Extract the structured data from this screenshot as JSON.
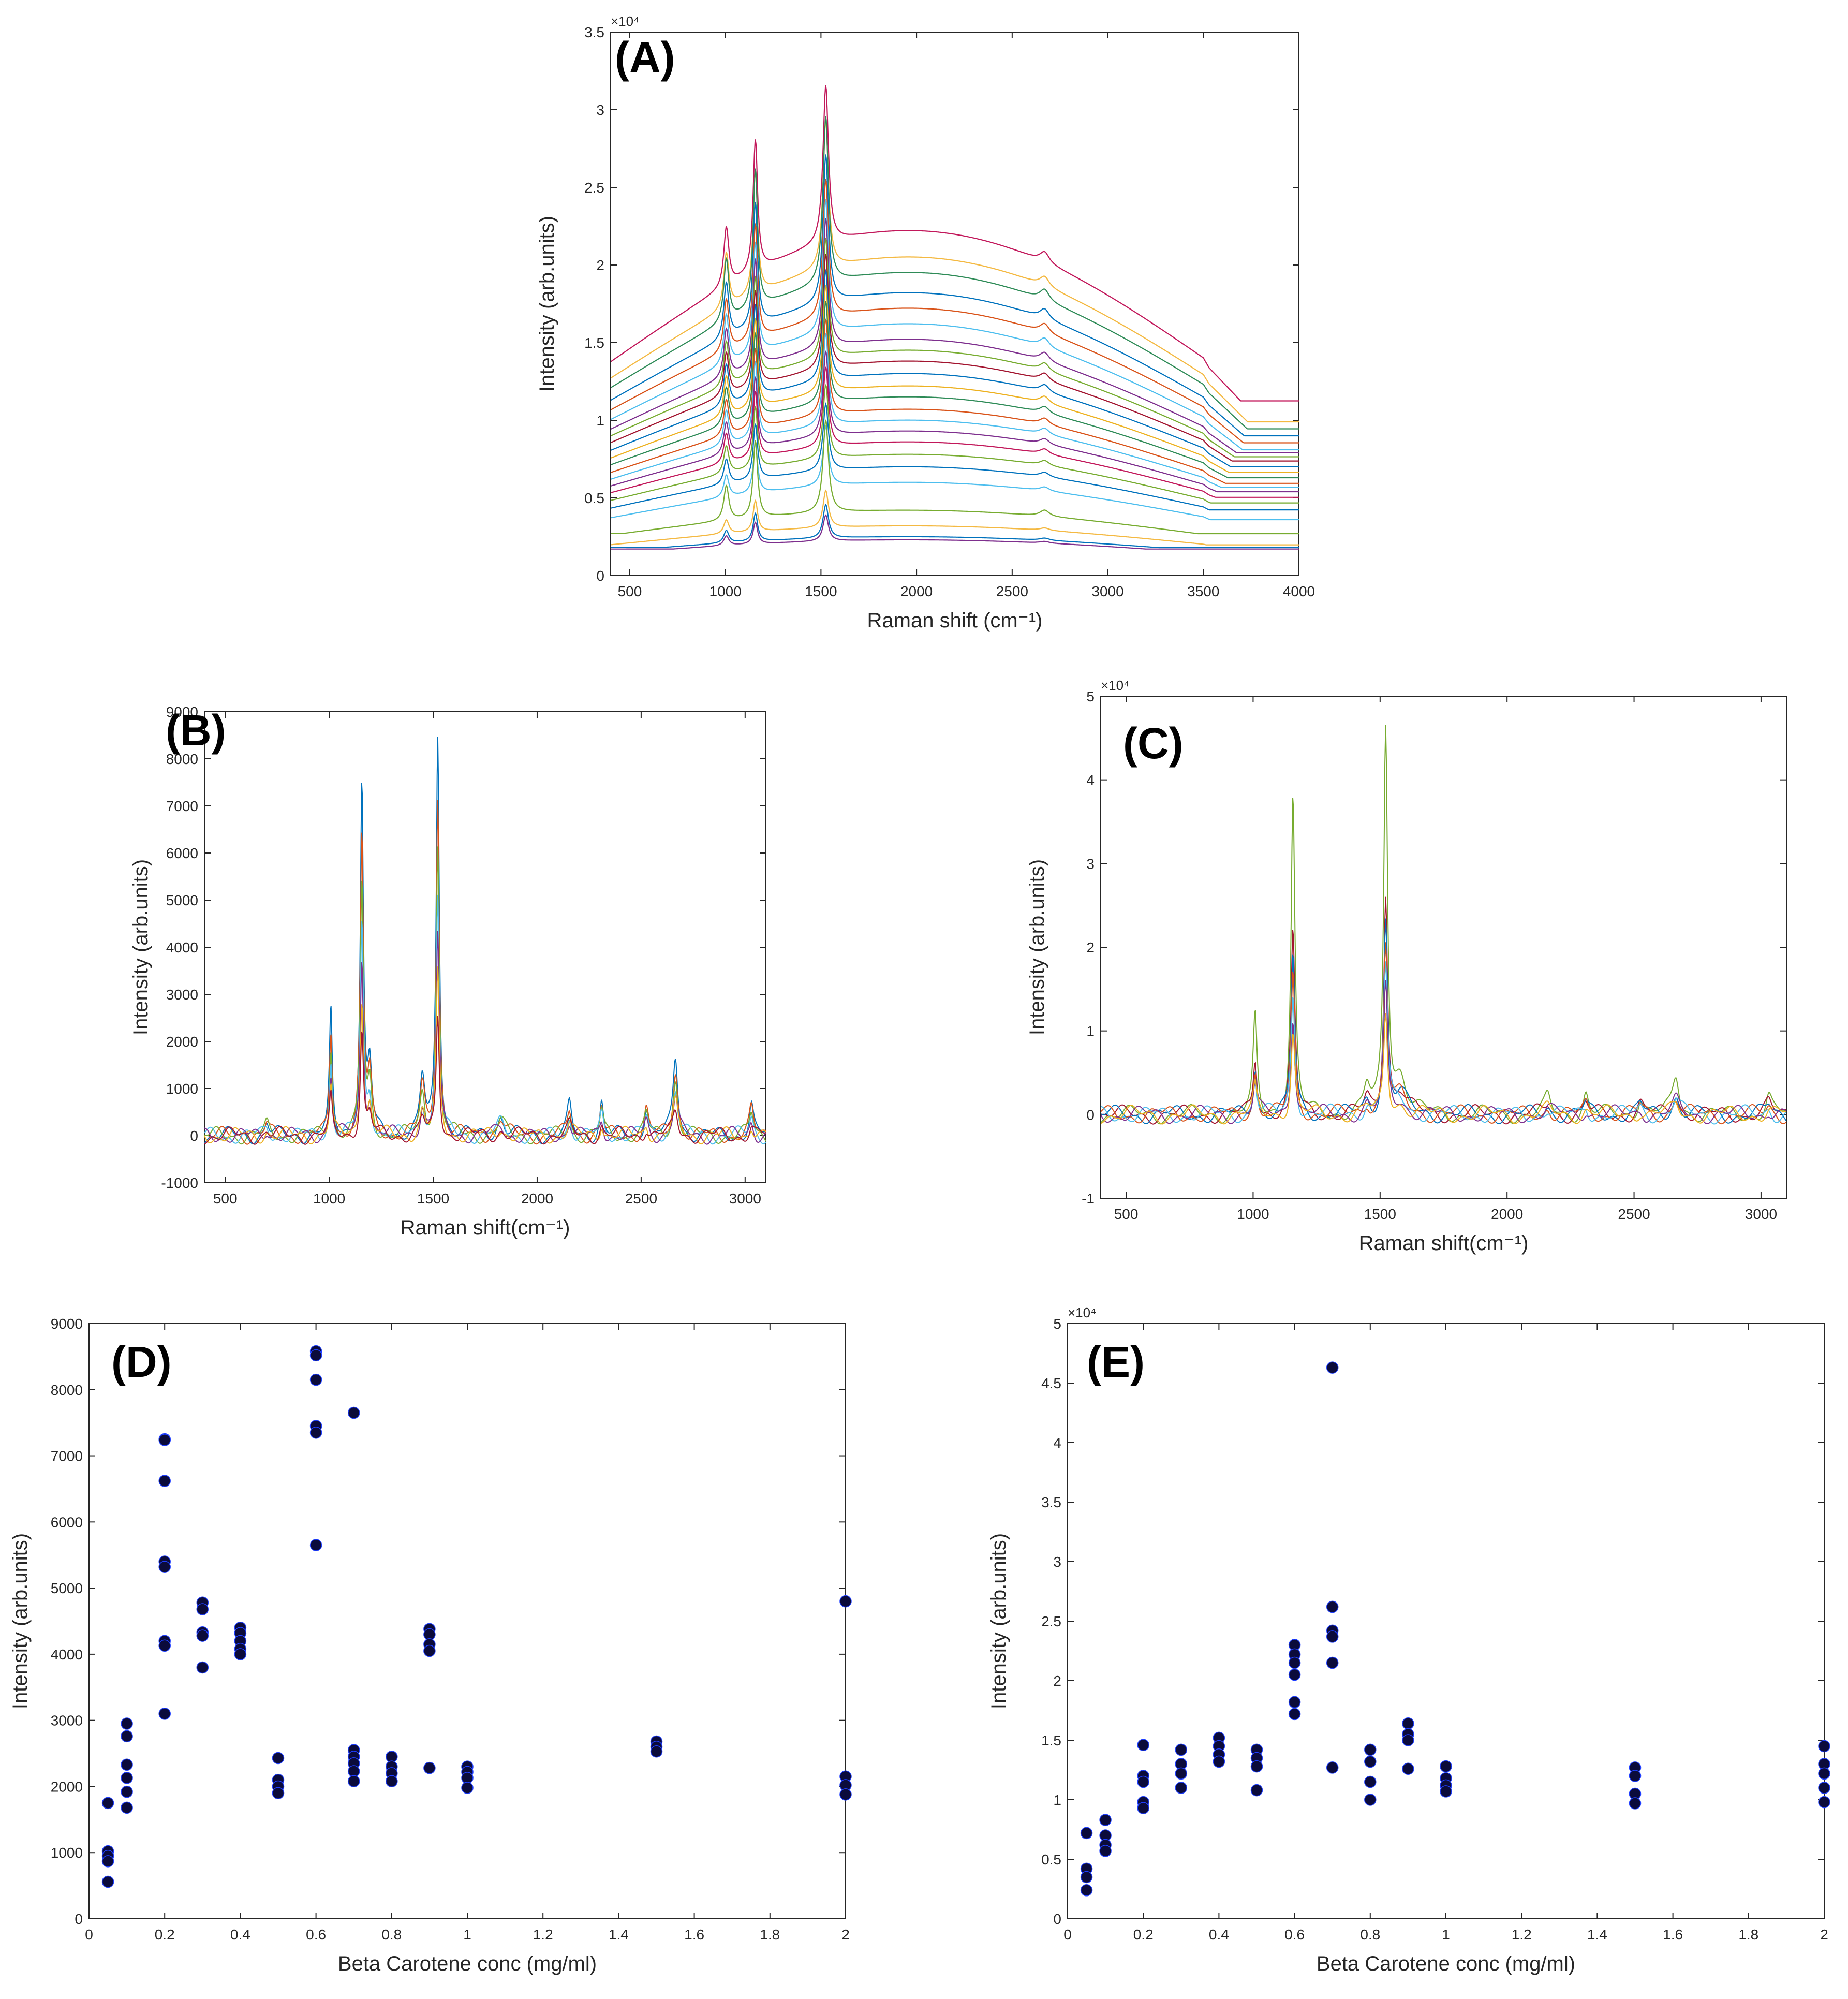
{
  "chart_data": [
    {
      "id": "A",
      "type": "line",
      "panel_label": "(A)",
      "xlabel": "Raman shift (cm⁻¹)",
      "ylabel": "Intensity (arb.units)",
      "y_multiplier": "×10⁴",
      "xlim": [
        400,
        4000
      ],
      "ylim": [
        0,
        3.5
      ],
      "xticks": [
        500,
        1000,
        1500,
        2000,
        2500,
        3000,
        3500,
        4000
      ],
      "yticks": [
        0,
        0.5,
        1,
        1.5,
        2,
        2.5,
        3,
        3.5
      ],
      "peaks": [
        {
          "pos": 1005,
          "width": 16,
          "rel": 0.45
        },
        {
          "pos": 1157,
          "width": 14,
          "rel": 1.0
        },
        {
          "pos": 1525,
          "width": 17,
          "rel": 1.2
        },
        {
          "pos": 2670,
          "width": 30,
          "rel": 0.08
        }
      ],
      "series": [
        {
          "name": "s1",
          "baseline": 2.22,
          "end": 1.25,
          "peak": 0.85,
          "color": "#c2185b"
        },
        {
          "name": "s2",
          "baseline": 2.05,
          "end": 1.1,
          "peak": 0.8,
          "color": "#f4b942"
        },
        {
          "name": "s3",
          "baseline": 1.95,
          "end": 1.05,
          "peak": 0.9,
          "color": "#2e8b57"
        },
        {
          "name": "s4",
          "baseline": 1.82,
          "end": 1.0,
          "peak": 0.8,
          "color": "#0072bd"
        },
        {
          "name": "s5",
          "baseline": 1.72,
          "end": 0.95,
          "peak": 0.75,
          "color": "#d95319"
        },
        {
          "name": "s6",
          "baseline": 1.62,
          "end": 0.9,
          "peak": 0.72,
          "color": "#4dbeee"
        },
        {
          "name": "s7",
          "baseline": 1.52,
          "end": 0.88,
          "peak": 0.7,
          "color": "#7e2f8e"
        },
        {
          "name": "s8",
          "baseline": 1.45,
          "end": 0.85,
          "peak": 0.65,
          "color": "#77ac30"
        },
        {
          "name": "s9",
          "baseline": 1.38,
          "end": 0.82,
          "peak": 0.62,
          "color": "#a2142f"
        },
        {
          "name": "s10",
          "baseline": 1.3,
          "end": 0.78,
          "peak": 0.6,
          "color": "#0072bd"
        },
        {
          "name": "s11",
          "baseline": 1.22,
          "end": 0.74,
          "peak": 0.58,
          "color": "#edb120"
        },
        {
          "name": "s12",
          "baseline": 1.15,
          "end": 0.7,
          "peak": 0.55,
          "color": "#2e8b57"
        },
        {
          "name": "s13",
          "baseline": 1.07,
          "end": 0.66,
          "peak": 0.52,
          "color": "#d95319"
        },
        {
          "name": "s14",
          "baseline": 1.0,
          "end": 0.63,
          "peak": 0.5,
          "color": "#4dbeee"
        },
        {
          "name": "s15",
          "baseline": 0.93,
          "end": 0.6,
          "peak": 0.46,
          "color": "#7e2f8e"
        },
        {
          "name": "s16",
          "baseline": 0.86,
          "end": 0.56,
          "peak": 0.43,
          "color": "#c2185b"
        },
        {
          "name": "s17",
          "baseline": 0.78,
          "end": 0.52,
          "peak": 0.4,
          "color": "#77ac30"
        },
        {
          "name": "s18",
          "baseline": 0.7,
          "end": 0.47,
          "peak": 0.36,
          "color": "#0072bd"
        },
        {
          "name": "s19",
          "baseline": 0.6,
          "end": 0.4,
          "peak": 0.32,
          "color": "#4dbeee"
        },
        {
          "name": "s20",
          "baseline": 0.42,
          "end": 0.3,
          "peak": 0.5,
          "color": "#77ac30"
        },
        {
          "name": "s21",
          "baseline": 0.32,
          "end": 0.22,
          "peak": 0.2,
          "color": "#f4b942"
        },
        {
          "name": "s22",
          "baseline": 0.25,
          "end": 0.2,
          "peak": 0.18,
          "color": "#0072bd"
        },
        {
          "name": "s23",
          "baseline": 0.23,
          "end": 0.19,
          "peak": 0.14,
          "color": "#7e2f8e"
        }
      ]
    },
    {
      "id": "B",
      "type": "line",
      "panel_label": "(B)",
      "xlabel": "Raman shift(cm⁻¹)",
      "ylabel": "Intensity (arb.units)",
      "y_multiplier": "",
      "xlim": [
        400,
        3100
      ],
      "ylim": [
        -1000,
        9000
      ],
      "xticks": [
        500,
        1000,
        1500,
        2000,
        2500,
        3000
      ],
      "yticks": [
        -1000,
        0,
        1000,
        2000,
        3000,
        4000,
        5000,
        6000,
        7000,
        8000,
        9000
      ],
      "peaks": [
        {
          "pos": 700,
          "width": 12,
          "rel": 280
        },
        {
          "pos": 1008,
          "width": 8,
          "rel": 2600
        },
        {
          "pos": 1157,
          "width": 9,
          "rel": 7400
        },
        {
          "pos": 1195,
          "width": 12,
          "rel": 1400
        },
        {
          "pos": 1448,
          "width": 14,
          "rel": 1200
        },
        {
          "pos": 1522,
          "width": 9,
          "rel": 8500
        },
        {
          "pos": 1825,
          "width": 20,
          "rel": 400
        },
        {
          "pos": 2155,
          "width": 12,
          "rel": 620
        },
        {
          "pos": 2310,
          "width": 10,
          "rel": 720
        },
        {
          "pos": 2525,
          "width": 12,
          "rel": 640
        },
        {
          "pos": 2665,
          "width": 14,
          "rel": 1650
        },
        {
          "pos": 3030,
          "width": 12,
          "rel": 650
        }
      ],
      "series": [
        {
          "name": "b1",
          "scale": 1.0,
          "color": "#0072bd"
        },
        {
          "name": "b2",
          "scale": 0.85,
          "color": "#d95319"
        },
        {
          "name": "b3",
          "scale": 0.72,
          "color": "#77ac30"
        },
        {
          "name": "b4",
          "scale": 0.6,
          "color": "#4dbeee"
        },
        {
          "name": "b5",
          "scale": 0.5,
          "color": "#7e2f8e"
        },
        {
          "name": "b6",
          "scale": 0.4,
          "color": "#edb120"
        },
        {
          "name": "b7",
          "scale": 0.3,
          "color": "#a2142f"
        }
      ]
    },
    {
      "id": "C",
      "type": "line",
      "panel_label": "(C)",
      "xlabel": "Raman shift(cm⁻¹)",
      "ylabel": "Intensity (arb.units)",
      "y_multiplier": "×10⁴",
      "xlim": [
        400,
        3100
      ],
      "ylim": [
        -1,
        5
      ],
      "xticks": [
        500,
        1000,
        1500,
        2000,
        2500,
        3000
      ],
      "yticks": [
        -1,
        0,
        1,
        2,
        3,
        4,
        5
      ],
      "peaks": [
        {
          "pos": 1008,
          "width": 9,
          "rel": 1.15
        },
        {
          "pos": 1157,
          "width": 9,
          "rel": 3.8
        },
        {
          "pos": 1448,
          "width": 14,
          "rel": 0.3
        },
        {
          "pos": 1522,
          "width": 9,
          "rel": 4.6
        },
        {
          "pos": 1580,
          "width": 30,
          "rel": 0.45
        },
        {
          "pos": 2160,
          "width": 14,
          "rel": 0.2
        },
        {
          "pos": 2310,
          "width": 12,
          "rel": 0.25
        },
        {
          "pos": 2525,
          "width": 14,
          "rel": 0.22
        },
        {
          "pos": 2665,
          "width": 16,
          "rel": 0.45
        },
        {
          "pos": 3030,
          "width": 14,
          "rel": 0.22
        }
      ],
      "series": [
        {
          "name": "c1",
          "scale": 1.0,
          "color": "#77ac30"
        },
        {
          "name": "c2",
          "scale": 0.57,
          "color": "#a2142f"
        },
        {
          "name": "c3",
          "scale": 0.5,
          "color": "#0072bd"
        },
        {
          "name": "c4",
          "scale": 0.44,
          "color": "#d95319"
        },
        {
          "name": "c5",
          "scale": 0.38,
          "color": "#4dbeee"
        },
        {
          "name": "c6",
          "scale": 0.32,
          "color": "#7e2f8e"
        },
        {
          "name": "c7",
          "scale": 0.26,
          "color": "#edb120"
        }
      ]
    },
    {
      "id": "D",
      "type": "scatter",
      "panel_label": "(D)",
      "xlabel": "Beta Carotene conc (mg/ml)",
      "ylabel": "Intensity (arb.units)",
      "y_multiplier": "",
      "xlim": [
        0,
        2
      ],
      "ylim": [
        0,
        9000
      ],
      "xticks": [
        0,
        0.2,
        0.4,
        0.6,
        0.8,
        1,
        1.2,
        1.4,
        1.6,
        1.8,
        2
      ],
      "yticks": [
        0,
        1000,
        2000,
        3000,
        4000,
        5000,
        6000,
        7000,
        8000,
        9000
      ],
      "x": [
        0.05,
        0.05,
        0.05,
        0.05,
        0.05,
        0.1,
        0.1,
        0.1,
        0.1,
        0.1,
        0.1,
        0.2,
        0.2,
        0.2,
        0.2,
        0.2,
        0.2,
        0.2,
        0.2,
        0.3,
        0.3,
        0.3,
        0.3,
        0.3,
        0.4,
        0.4,
        0.4,
        0.4,
        0.4,
        0.5,
        0.5,
        0.5,
        0.5,
        0.6,
        0.6,
        0.6,
        0.6,
        0.6,
        0.6,
        0.7,
        0.7,
        0.7,
        0.7,
        0.7,
        0.7,
        0.8,
        0.8,
        0.8,
        0.8,
        0.9,
        0.9,
        0.9,
        0.9,
        0.9,
        1,
        1,
        1,
        1,
        1.5,
        1.5,
        1.5,
        2,
        2,
        2,
        2
      ],
      "y": [
        1750,
        1020,
        950,
        870,
        560,
        2950,
        2760,
        2330,
        2130,
        1920,
        1680,
        7250,
        6620,
        5400,
        5320,
        4200,
        4130,
        3100,
        7240,
        4780,
        4680,
        4330,
        4280,
        3800,
        4400,
        4320,
        4200,
        4080,
        4000,
        2430,
        2100,
        2000,
        1900,
        8580,
        8520,
        8150,
        7450,
        7350,
        5650,
        7650,
        2550,
        2450,
        2350,
        2230,
        2080,
        2450,
        2300,
        2200,
        2080,
        4380,
        4300,
        4150,
        4050,
        2280,
        2300,
        2220,
        2130,
        1980,
        2680,
        2600,
        2530,
        4800,
        2150,
        2020,
        1880
      ]
    },
    {
      "id": "E",
      "type": "scatter",
      "panel_label": "(E)",
      "xlabel": "Beta Carotene conc (mg/ml)",
      "ylabel": "Intensity (arb.units)",
      "y_multiplier": "×10⁴",
      "xlim": [
        0,
        2
      ],
      "ylim": [
        0,
        5
      ],
      "xticks": [
        0,
        0.2,
        0.4,
        0.6,
        0.8,
        1,
        1.2,
        1.4,
        1.6,
        1.8,
        2
      ],
      "yticks": [
        0,
        0.5,
        1,
        1.5,
        2,
        2.5,
        3,
        3.5,
        4,
        4.5,
        5
      ],
      "x": [
        0.05,
        0.05,
        0.05,
        0.05,
        0.1,
        0.1,
        0.1,
        0.1,
        0.2,
        0.2,
        0.2,
        0.2,
        0.2,
        0.3,
        0.3,
        0.3,
        0.3,
        0.4,
        0.4,
        0.4,
        0.4,
        0.5,
        0.5,
        0.5,
        0.5,
        0.6,
        0.6,
        0.6,
        0.6,
        0.6,
        0.6,
        0.7,
        0.7,
        0.7,
        0.7,
        0.7,
        0.7,
        0.8,
        0.8,
        0.8,
        0.8,
        0.9,
        0.9,
        0.9,
        0.9,
        1,
        1,
        1,
        1,
        1.5,
        1.5,
        1.5,
        1.5,
        2,
        2,
        2,
        2,
        2
      ],
      "y": [
        0.72,
        0.42,
        0.35,
        0.24,
        0.83,
        0.7,
        0.62,
        0.57,
        1.46,
        1.2,
        1.15,
        0.98,
        0.93,
        1.42,
        1.3,
        1.22,
        1.1,
        1.52,
        1.45,
        1.38,
        1.32,
        1.42,
        1.35,
        1.28,
        1.08,
        2.3,
        2.22,
        2.05,
        1.82,
        1.72,
        2.15,
        4.63,
        2.62,
        2.42,
        2.37,
        2.15,
        1.27,
        1.42,
        1.32,
        1.15,
        1.0,
        1.64,
        1.55,
        1.5,
        1.26,
        1.28,
        1.18,
        1.12,
        1.07,
        1.27,
        1.2,
        1.05,
        0.97,
        1.45,
        1.3,
        1.22,
        1.1,
        0.98
      ]
    }
  ]
}
